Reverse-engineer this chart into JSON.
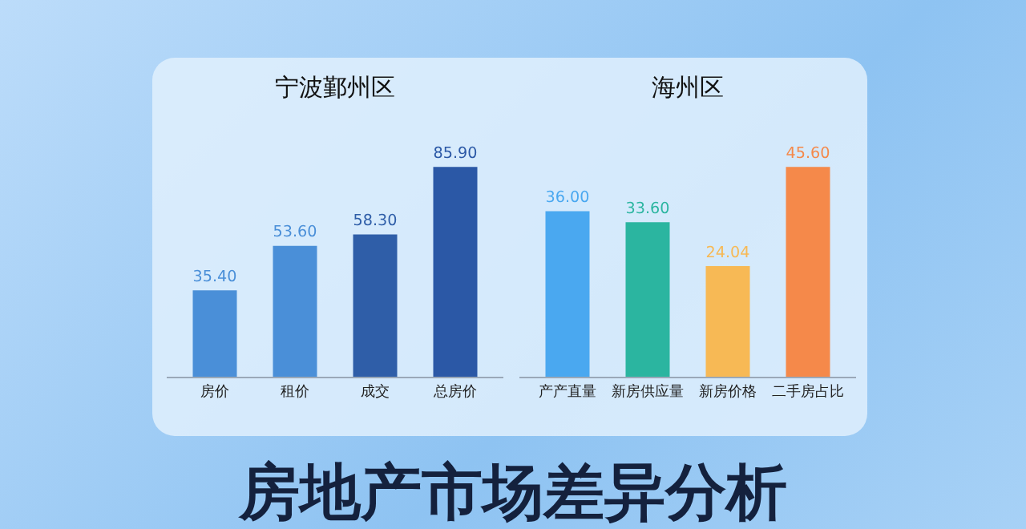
{
  "chart_data": [
    {
      "type": "bar",
      "title": "宁波鄞州区",
      "categories": [
        "房价",
        "租价",
        "成交",
        "总房价"
      ],
      "values": [
        35.4,
        53.6,
        58.3,
        85.9
      ],
      "value_labels": [
        "35.40",
        "53.60",
        "58.30",
        "85.90"
      ],
      "colors": [
        "#4a8fd8",
        "#4a8fd8",
        "#2f5ea8",
        "#2b58a6"
      ],
      "tick_labels": "x",
      "grid": false
    },
    {
      "type": "bar",
      "title": "海州区",
      "categories": [
        "产产直量",
        "新房供应量",
        "新房价格",
        "二手房占比"
      ],
      "values": [
        36.0,
        33.6,
        24.04,
        45.6
      ],
      "value_labels": [
        "36.00",
        "33.60",
        "24.04",
        "45.60"
      ],
      "colors": [
        "#4aa8f0",
        "#2bb5a0",
        "#f7b955",
        "#f5894a"
      ],
      "tick_labels": "x",
      "grid": false
    },
    {
      "type": "other",
      "title": "房地产市场差异分析"
    }
  ]
}
